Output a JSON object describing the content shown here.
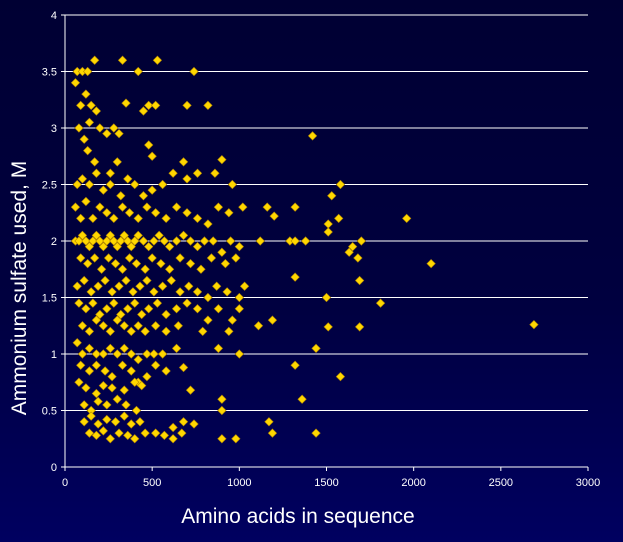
{
  "chart_data": {
    "type": "scatter",
    "title": "",
    "xlabel": "Amino acids in sequence",
    "ylabel": "Ammonium sulfate used, M",
    "xlim": [
      0,
      3000
    ],
    "ylim": [
      0,
      4
    ],
    "xticks": [
      "0",
      "500",
      "1000",
      "1500",
      "2000",
      "2500",
      "3000"
    ],
    "yticks": [
      "0",
      "0.5",
      "1",
      "1.5",
      "2",
      "2.5",
      "3",
      "3.5",
      "4"
    ],
    "grid": "horizontal",
    "marker": "diamond",
    "marker_color": "#ffd700",
    "points": [
      [
        70,
        3.5
      ],
      [
        100,
        3.5
      ],
      [
        130,
        3.5
      ],
      [
        170,
        3.6
      ],
      [
        330,
        3.6
      ],
      [
        530,
        3.6
      ],
      [
        740,
        3.5
      ],
      [
        420,
        3.5
      ],
      [
        60,
        3.4
      ],
      [
        90,
        3.2
      ],
      [
        120,
        3.3
      ],
      [
        150,
        3.2
      ],
      [
        180,
        3.15
      ],
      [
        350,
        3.22
      ],
      [
        480,
        3.2
      ],
      [
        520,
        3.2
      ],
      [
        450,
        3.15
      ],
      [
        700,
        3.2
      ],
      [
        820,
        3.2
      ],
      [
        80,
        3.0
      ],
      [
        110,
        2.9
      ],
      [
        140,
        3.05
      ],
      [
        200,
        3.0
      ],
      [
        240,
        2.95
      ],
      [
        280,
        3.0
      ],
      [
        310,
        2.95
      ],
      [
        130,
        2.8
      ],
      [
        170,
        2.7
      ],
      [
        260,
        2.6
      ],
      [
        300,
        2.7
      ],
      [
        480,
        2.85
      ],
      [
        500,
        2.75
      ],
      [
        680,
        2.7
      ],
      [
        900,
        2.72
      ],
      [
        1420,
        2.93
      ],
      [
        70,
        2.5
      ],
      [
        100,
        2.55
      ],
      [
        140,
        2.5
      ],
      [
        180,
        2.6
      ],
      [
        220,
        2.45
      ],
      [
        260,
        2.5
      ],
      [
        320,
        2.4
      ],
      [
        360,
        2.55
      ],
      [
        400,
        2.5
      ],
      [
        450,
        2.4
      ],
      [
        500,
        2.45
      ],
      [
        560,
        2.5
      ],
      [
        620,
        2.6
      ],
      [
        700,
        2.55
      ],
      [
        760,
        2.6
      ],
      [
        860,
        2.6
      ],
      [
        960,
        2.5
      ],
      [
        1580,
        2.5
      ],
      [
        1530,
        2.4
      ],
      [
        60,
        2.3
      ],
      [
        90,
        2.2
      ],
      [
        120,
        2.35
      ],
      [
        160,
        2.2
      ],
      [
        200,
        2.3
      ],
      [
        240,
        2.25
      ],
      [
        280,
        2.2
      ],
      [
        330,
        2.3
      ],
      [
        370,
        2.25
      ],
      [
        420,
        2.2
      ],
      [
        470,
        2.3
      ],
      [
        520,
        2.25
      ],
      [
        580,
        2.2
      ],
      [
        640,
        2.3
      ],
      [
        700,
        2.25
      ],
      [
        760,
        2.2
      ],
      [
        820,
        2.15
      ],
      [
        880,
        2.3
      ],
      [
        940,
        2.25
      ],
      [
        1020,
        2.3
      ],
      [
        1160,
        2.3
      ],
      [
        1200,
        2.22
      ],
      [
        1320,
        2.3
      ],
      [
        1510,
        2.15
      ],
      [
        1570,
        2.2
      ],
      [
        1960,
        2.2
      ],
      [
        60,
        2.0
      ],
      [
        80,
        2.0
      ],
      [
        100,
        2.05
      ],
      [
        120,
        2.0
      ],
      [
        140,
        1.95
      ],
      [
        160,
        2.0
      ],
      [
        180,
        2.05
      ],
      [
        200,
        2.0
      ],
      [
        220,
        1.95
      ],
      [
        240,
        2.0
      ],
      [
        260,
        2.05
      ],
      [
        280,
        2.0
      ],
      [
        300,
        1.95
      ],
      [
        320,
        2.0
      ],
      [
        340,
        2.05
      ],
      [
        360,
        2.0
      ],
      [
        380,
        1.95
      ],
      [
        400,
        2.0
      ],
      [
        420,
        2.05
      ],
      [
        450,
        2.0
      ],
      [
        480,
        1.95
      ],
      [
        510,
        2.0
      ],
      [
        540,
        2.05
      ],
      [
        570,
        2.0
      ],
      [
        600,
        1.95
      ],
      [
        640,
        2.0
      ],
      [
        680,
        2.05
      ],
      [
        720,
        2.0
      ],
      [
        760,
        1.95
      ],
      [
        800,
        2.0
      ],
      [
        850,
        2.0
      ],
      [
        900,
        1.9
      ],
      [
        950,
        2.0
      ],
      [
        1000,
        1.95
      ],
      [
        1120,
        2.0
      ],
      [
        1290,
        2.0
      ],
      [
        1320,
        2.0
      ],
      [
        1380,
        2.0
      ],
      [
        1510,
        2.08
      ],
      [
        1650,
        1.95
      ],
      [
        1700,
        2.0
      ],
      [
        1630,
        1.9
      ],
      [
        1680,
        1.85
      ],
      [
        90,
        1.85
      ],
      [
        130,
        1.8
      ],
      [
        170,
        1.85
      ],
      [
        210,
        1.75
      ],
      [
        250,
        1.85
      ],
      [
        290,
        1.8
      ],
      [
        330,
        1.75
      ],
      [
        370,
        1.85
      ],
      [
        410,
        1.8
      ],
      [
        460,
        1.75
      ],
      [
        500,
        1.85
      ],
      [
        550,
        1.8
      ],
      [
        600,
        1.75
      ],
      [
        660,
        1.85
      ],
      [
        720,
        1.8
      ],
      [
        780,
        1.75
      ],
      [
        840,
        1.85
      ],
      [
        920,
        1.8
      ],
      [
        980,
        1.85
      ],
      [
        1320,
        1.68
      ],
      [
        1690,
        1.65
      ],
      [
        2100,
        1.8
      ],
      [
        70,
        1.6
      ],
      [
        110,
        1.65
      ],
      [
        150,
        1.55
      ],
      [
        190,
        1.6
      ],
      [
        230,
        1.65
      ],
      [
        270,
        1.55
      ],
      [
        310,
        1.6
      ],
      [
        350,
        1.65
      ],
      [
        390,
        1.55
      ],
      [
        430,
        1.6
      ],
      [
        470,
        1.65
      ],
      [
        510,
        1.55
      ],
      [
        560,
        1.6
      ],
      [
        610,
        1.65
      ],
      [
        660,
        1.55
      ],
      [
        710,
        1.6
      ],
      [
        760,
        1.55
      ],
      [
        820,
        1.5
      ],
      [
        870,
        1.6
      ],
      [
        930,
        1.55
      ],
      [
        1000,
        1.5
      ],
      [
        1030,
        1.6
      ],
      [
        1500,
        1.5
      ],
      [
        1810,
        1.45
      ],
      [
        80,
        1.45
      ],
      [
        120,
        1.4
      ],
      [
        160,
        1.45
      ],
      [
        200,
        1.35
      ],
      [
        240,
        1.4
      ],
      [
        280,
        1.45
      ],
      [
        320,
        1.35
      ],
      [
        360,
        1.4
      ],
      [
        400,
        1.45
      ],
      [
        440,
        1.35
      ],
      [
        480,
        1.4
      ],
      [
        530,
        1.45
      ],
      [
        580,
        1.35
      ],
      [
        640,
        1.4
      ],
      [
        700,
        1.45
      ],
      [
        760,
        1.4
      ],
      [
        820,
        1.3
      ],
      [
        880,
        1.4
      ],
      [
        960,
        1.3
      ],
      [
        1000,
        1.4
      ],
      [
        100,
        1.25
      ],
      [
        140,
        1.2
      ],
      [
        180,
        1.3
      ],
      [
        220,
        1.25
      ],
      [
        260,
        1.2
      ],
      [
        300,
        1.3
      ],
      [
        340,
        1.25
      ],
      [
        380,
        1.2
      ],
      [
        420,
        1.25
      ],
      [
        460,
        1.2
      ],
      [
        520,
        1.25
      ],
      [
        580,
        1.2
      ],
      [
        650,
        1.25
      ],
      [
        790,
        1.2
      ],
      [
        940,
        1.2
      ],
      [
        1110,
        1.25
      ],
      [
        1190,
        1.3
      ],
      [
        1510,
        1.24
      ],
      [
        1690,
        1.24
      ],
      [
        2690,
        1.26
      ],
      [
        70,
        1.1
      ],
      [
        100,
        1.0
      ],
      [
        140,
        1.05
      ],
      [
        180,
        1.0
      ],
      [
        220,
        1.0
      ],
      [
        260,
        1.05
      ],
      [
        300,
        1.0
      ],
      [
        340,
        1.05
      ],
      [
        380,
        1.0
      ],
      [
        420,
        0.95
      ],
      [
        470,
        1.0
      ],
      [
        510,
        1.0
      ],
      [
        560,
        1.0
      ],
      [
        640,
        1.05
      ],
      [
        880,
        1.05
      ],
      [
        1000,
        1.0
      ],
      [
        1440,
        1.05
      ],
      [
        90,
        0.9
      ],
      [
        140,
        0.85
      ],
      [
        180,
        0.9
      ],
      [
        230,
        0.85
      ],
      [
        270,
        0.8
      ],
      [
        330,
        0.9
      ],
      [
        380,
        0.85
      ],
      [
        420,
        0.75
      ],
      [
        470,
        0.8
      ],
      [
        520,
        0.9
      ],
      [
        580,
        0.85
      ],
      [
        680,
        0.88
      ],
      [
        1320,
        0.9
      ],
      [
        1580,
        0.8
      ],
      [
        80,
        0.75
      ],
      [
        120,
        0.7
      ],
      [
        180,
        0.65
      ],
      [
        220,
        0.72
      ],
      [
        270,
        0.7
      ],
      [
        340,
        0.68
      ],
      [
        400,
        0.75
      ],
      [
        440,
        0.72
      ],
      [
        720,
        0.68
      ],
      [
        110,
        0.55
      ],
      [
        150,
        0.5
      ],
      [
        190,
        0.58
      ],
      [
        240,
        0.55
      ],
      [
        300,
        0.6
      ],
      [
        350,
        0.55
      ],
      [
        410,
        0.5
      ],
      [
        900,
        0.6
      ],
      [
        900,
        0.5
      ],
      [
        1360,
        0.6
      ],
      [
        110,
        0.4
      ],
      [
        150,
        0.45
      ],
      [
        190,
        0.38
      ],
      [
        240,
        0.42
      ],
      [
        290,
        0.4
      ],
      [
        340,
        0.45
      ],
      [
        380,
        0.38
      ],
      [
        430,
        0.4
      ],
      [
        620,
        0.35
      ],
      [
        680,
        0.4
      ],
      [
        740,
        0.38
      ],
      [
        1170,
        0.4
      ],
      [
        140,
        0.3
      ],
      [
        180,
        0.28
      ],
      [
        220,
        0.32
      ],
      [
        260,
        0.25
      ],
      [
        310,
        0.3
      ],
      [
        360,
        0.28
      ],
      [
        400,
        0.25
      ],
      [
        460,
        0.3
      ],
      [
        520,
        0.3
      ],
      [
        570,
        0.28
      ],
      [
        620,
        0.25
      ],
      [
        670,
        0.3
      ],
      [
        900,
        0.25
      ],
      [
        980,
        0.25
      ],
      [
        1190,
        0.3
      ],
      [
        1440,
        0.3
      ]
    ]
  }
}
